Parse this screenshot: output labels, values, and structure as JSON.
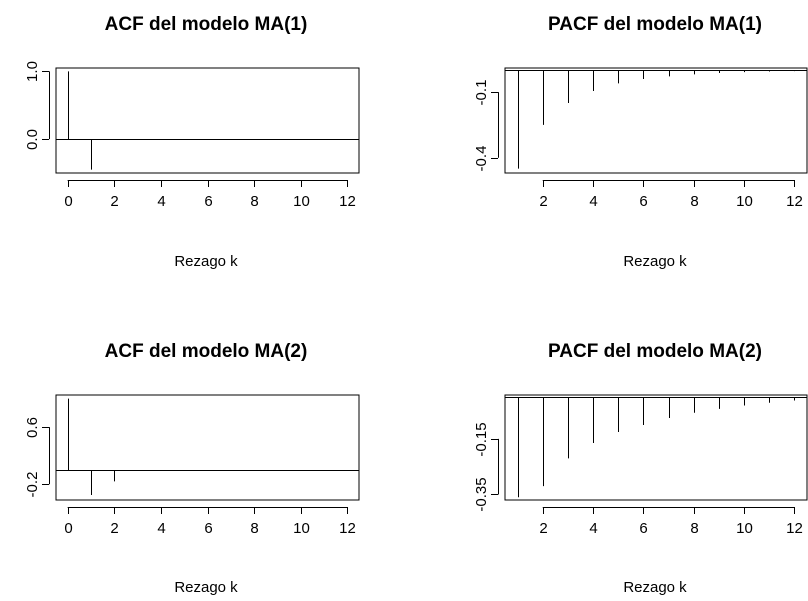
{
  "chart_data": [
    {
      "type": "bar",
      "title": "ACF del modelo MA(1)",
      "xlabel": "Rezago k",
      "ylabel": "",
      "xlim": [
        -0.5,
        12.5
      ],
      "ylim": [
        -0.5,
        1.05
      ],
      "xticks": [
        0,
        2,
        4,
        6,
        8,
        10,
        12
      ],
      "yticks": [
        0.0,
        1.0
      ],
      "ytick_labels": [
        "0.0",
        "1.0"
      ],
      "zero_line": true,
      "x": [
        0,
        1,
        2,
        3,
        4,
        5,
        6,
        7,
        8,
        9,
        10,
        11,
        12
      ],
      "values": [
        1.0,
        -0.45,
        0,
        0,
        0,
        0,
        0,
        0,
        0,
        0,
        0,
        0,
        0
      ]
    },
    {
      "type": "bar",
      "title": "PACF del modelo MA(1)",
      "xlabel": "Rezago k",
      "ylabel": "",
      "xlim": [
        0.5,
        12.5
      ],
      "ylim": [
        -0.47,
        0.01
      ],
      "xticks": [
        2,
        4,
        6,
        8,
        10,
        12
      ],
      "yticks": [
        -0.1,
        -0.4
      ],
      "ytick_labels": [
        "-0.1",
        "-0.4"
      ],
      "zero_line": true,
      "x": [
        1,
        2,
        3,
        4,
        5,
        6,
        7,
        8,
        9,
        10,
        11,
        12
      ],
      "values": [
        -0.45,
        -0.25,
        -0.15,
        -0.095,
        -0.06,
        -0.04,
        -0.028,
        -0.019,
        -0.013,
        -0.009,
        -0.006,
        -0.004
      ]
    },
    {
      "type": "bar",
      "title": "ACF del modelo MA(2)",
      "xlabel": "Rezago k",
      "ylabel": "",
      "xlim": [
        -0.5,
        12.5
      ],
      "ylim": [
        -0.42,
        1.05
      ],
      "xticks": [
        0,
        2,
        4,
        6,
        8,
        10,
        12
      ],
      "yticks": [
        -0.2,
        0.6
      ],
      "ytick_labels": [
        "-0.2",
        "0.6"
      ],
      "zero_line": true,
      "x": [
        0,
        1,
        2,
        3,
        4,
        5,
        6,
        7,
        8,
        9,
        10,
        11,
        12
      ],
      "values": [
        1.0,
        -0.35,
        -0.16,
        0,
        0,
        0,
        0,
        0,
        0,
        0,
        0,
        0,
        0
      ]
    },
    {
      "type": "bar",
      "title": "PACF del modelo MA(2)",
      "xlabel": "Rezago k",
      "ylabel": "",
      "xlim": [
        0.5,
        12.5
      ],
      "ylim": [
        -0.37,
        0.008
      ],
      "xticks": [
        2,
        4,
        6,
        8,
        10,
        12
      ],
      "yticks": [
        -0.15,
        -0.35
      ],
      "ytick_labels": [
        "-0.15",
        "-0.35"
      ],
      "zero_line": true,
      "x": [
        1,
        2,
        3,
        4,
        5,
        6,
        7,
        8,
        9,
        10,
        11,
        12
      ],
      "values": [
        -0.36,
        -0.32,
        -0.22,
        -0.165,
        -0.125,
        -0.1,
        -0.075,
        -0.056,
        -0.042,
        -0.03,
        -0.02,
        -0.012
      ]
    }
  ]
}
